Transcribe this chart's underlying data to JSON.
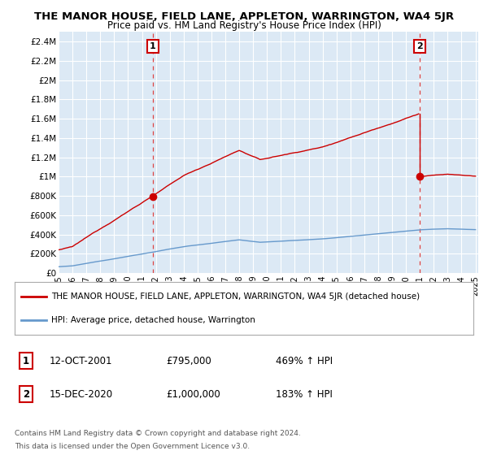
{
  "title": "THE MANOR HOUSE, FIELD LANE, APPLETON, WARRINGTON, WA4 5JR",
  "subtitle": "Price paid vs. HM Land Registry's House Price Index (HPI)",
  "title_fontsize": 9.5,
  "subtitle_fontsize": 8.5,
  "background_color": "#ffffff",
  "plot_bg_color": "#dce9f5",
  "grid_color": "#ffffff",
  "ylim": [
    0,
    2500000
  ],
  "yticks": [
    0,
    200000,
    400000,
    600000,
    800000,
    1000000,
    1200000,
    1400000,
    1600000,
    1800000,
    2000000,
    2200000,
    2400000
  ],
  "ytick_labels": [
    "£0",
    "£200K",
    "£400K",
    "£600K",
    "£800K",
    "£1M",
    "£1.2M",
    "£1.4M",
    "£1.6M",
    "£1.8M",
    "£2M",
    "£2.2M",
    "£2.4M"
  ],
  "xlim_start": 1995.5,
  "xlim_end": 2025.2,
  "xticks": [
    1995,
    1996,
    1997,
    1998,
    1999,
    2000,
    2001,
    2002,
    2003,
    2004,
    2005,
    2006,
    2007,
    2008,
    2009,
    2010,
    2011,
    2012,
    2013,
    2014,
    2015,
    2016,
    2017,
    2018,
    2019,
    2020,
    2021,
    2022,
    2023,
    2024,
    2025
  ],
  "sale1_x": 2001.79,
  "sale1_y": 795000,
  "sale1_label": "1",
  "sale1_date": "12-OCT-2001",
  "sale1_price": "£795,000",
  "sale1_hpi": "469% ↑ HPI",
  "sale2_x": 2020.96,
  "sale2_y": 1000000,
  "sale2_label": "2",
  "sale2_date": "15-DEC-2020",
  "sale2_price": "£1,000,000",
  "sale2_hpi": "183% ↑ HPI",
  "red_color": "#cc0000",
  "blue_color": "#6699cc",
  "dashed_color": "#dd4444",
  "legend_line1": "THE MANOR HOUSE, FIELD LANE, APPLETON, WARRINGTON, WA4 5JR (detached house)",
  "legend_line2": "HPI: Average price, detached house, Warrington",
  "footer1": "Contains HM Land Registry data © Crown copyright and database right 2024.",
  "footer2": "This data is licensed under the Open Government Licence v3.0."
}
